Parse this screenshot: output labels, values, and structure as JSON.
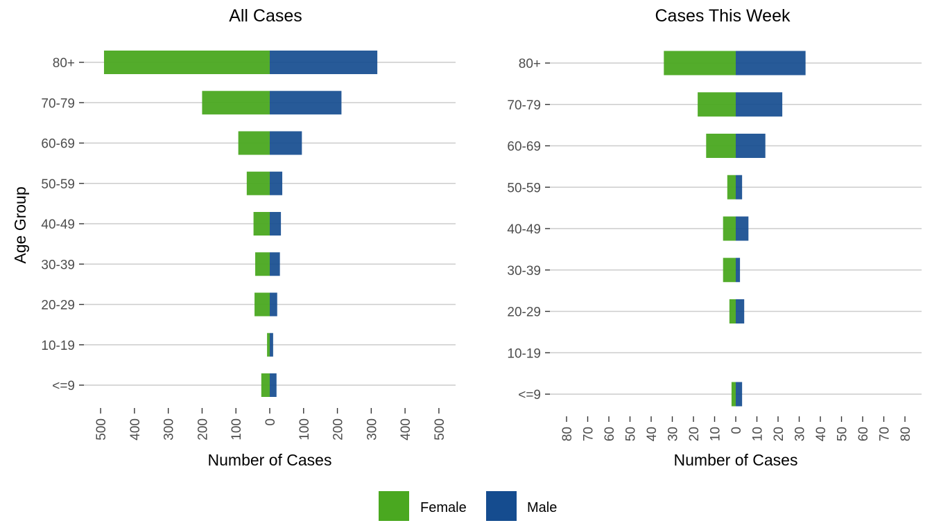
{
  "colors": {
    "Female": "#4aa820",
    "Male": "#154c8f"
  },
  "legend": {
    "entries": [
      "Female",
      "Male"
    ],
    "position": "bottom"
  },
  "shared_y_axis_title": "Age Group",
  "chart_data": [
    {
      "type": "bar",
      "orientation": "horizontal-diverging",
      "title": "All Cases",
      "xlabel": "Number of Cases",
      "ylabel": "Age Group",
      "categories": [
        "<=9",
        "10-19",
        "20-29",
        "30-39",
        "40-49",
        "50-59",
        "60-69",
        "70-79",
        "80+"
      ],
      "series": [
        {
          "name": "Female",
          "values": [
            25,
            8,
            45,
            43,
            48,
            68,
            93,
            200,
            490
          ]
        },
        {
          "name": "Male",
          "values": [
            20,
            10,
            22,
            30,
            33,
            37,
            95,
            212,
            318
          ]
        }
      ],
      "xlim": [
        -500,
        500
      ],
      "ticks": [
        -500,
        -400,
        -300,
        -200,
        -100,
        0,
        100,
        200,
        300,
        400,
        500
      ],
      "tick_labels": [
        "500",
        "400",
        "300",
        "200",
        "100",
        "0",
        "100",
        "200",
        "300",
        "400",
        "500"
      ],
      "grid": "horizontal"
    },
    {
      "type": "bar",
      "orientation": "horizontal-diverging",
      "title": "Cases This Week",
      "xlabel": "Number of Cases",
      "categories": [
        "<=9",
        "10-19",
        "20-29",
        "30-39",
        "40-49",
        "50-59",
        "60-69",
        "70-79",
        "80+"
      ],
      "series": [
        {
          "name": "Female",
          "values": [
            2,
            0,
            3,
            6,
            6,
            4,
            14,
            18,
            34
          ]
        },
        {
          "name": "Male",
          "values": [
            3,
            0,
            4,
            2,
            6,
            3,
            14,
            22,
            33
          ]
        }
      ],
      "xlim": [
        -80,
        80
      ],
      "ticks": [
        -80,
        -70,
        -60,
        -50,
        -40,
        -30,
        -20,
        -10,
        0,
        10,
        20,
        30,
        40,
        50,
        60,
        70,
        80
      ],
      "tick_labels": [
        "80",
        "70",
        "60",
        "50",
        "40",
        "30",
        "20",
        "10",
        "0",
        "10",
        "20",
        "30",
        "40",
        "50",
        "60",
        "70",
        "80"
      ],
      "grid": "horizontal"
    }
  ]
}
